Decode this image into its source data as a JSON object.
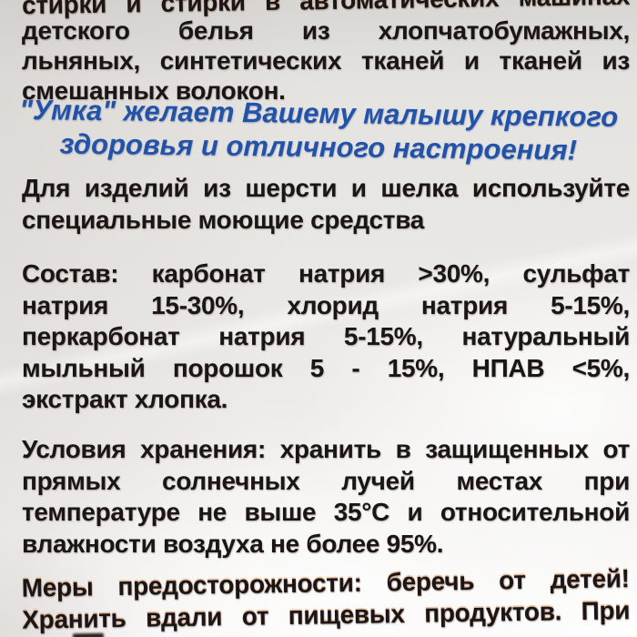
{
  "photo_subject": "close-up photo of the back of an 'Umka' baby laundry detergent plastic package with Russian label text",
  "colors": {
    "text_black": "#1b1517",
    "accent_blue": "#2253a8",
    "bag_base": "#eae8e5",
    "bag_highlight": "#ffffff"
  },
  "label": {
    "intro": {
      "lines": [
        "стирки и стирки в автоматических машинах",
        "детского белья из хлопчатобумажных,",
        "льняных, синтетических тканей и тканей из",
        "смешанных волокон."
      ]
    },
    "slogan": {
      "lines": [
        "\"Умка\" желает Вашему малышу крепкого",
        "здоровья и отличного настроения!"
      ]
    },
    "wool_note": {
      "lines": [
        "Для изделий из шерсти и шелка используйте",
        "специальные моющие средства"
      ]
    },
    "composition": {
      "heading": "Состав:",
      "lines": [
        "Состав: карбонат натрия >30%, сульфат",
        "натрия 15-30%, хлорид натрия 5-15%,",
        "перкарбонат натрия 5-15%, натуральный",
        "мыльный порошок 5 - 15%, НПАВ <5%,",
        "экстракт хлопка."
      ]
    },
    "storage": {
      "heading": "Условия хранения:",
      "lines": [
        "Условия хранения: хранить в защищенных от",
        "прямых солнечных лучей местах при",
        "температуре не выше 35°С и относительной",
        "влажности воздуха не более 95%."
      ]
    },
    "precautions": {
      "heading": "Меры предосторожности:",
      "lines": [
        "Меры предосторожности: беречь от детей!",
        "Хранить вдали от пищевых продуктов. При"
      ]
    }
  }
}
